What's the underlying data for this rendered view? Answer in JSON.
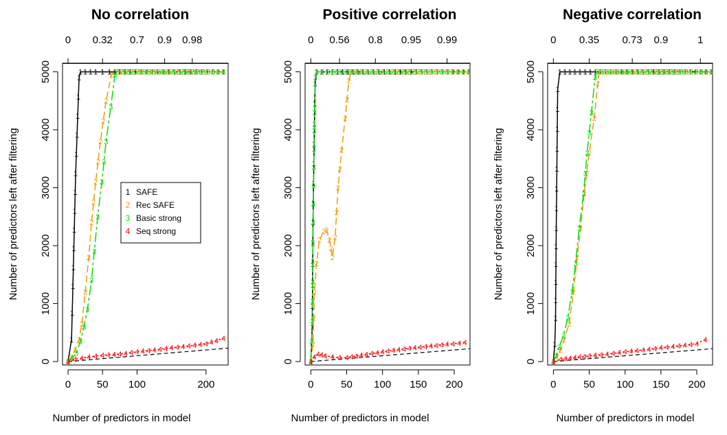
{
  "colors": {
    "SAFE": "#000000",
    "Rec SAFE": "#ee9a00",
    "Basic strong": "#00dd00",
    "Seq strong": "#ff0000",
    "diagonal": "#000000"
  },
  "legend": {
    "placement": "left-panel, middle",
    "entries": [
      {
        "symbol": "1",
        "label": "SAFE"
      },
      {
        "symbol": "2",
        "label": "Rec SAFE"
      },
      {
        "symbol": "3",
        "label": "Basic strong"
      },
      {
        "symbol": "4",
        "label": "Seq strong"
      }
    ]
  },
  "chart_data": [
    {
      "type": "line",
      "title": "No correlation",
      "xlabel": "Number of predictors in model",
      "ylabel": "Number of predictors left after filtering",
      "xlim": [
        -8,
        232
      ],
      "ylim": [
        -60,
        5150
      ],
      "x_ticks": [
        0,
        50,
        100,
        200
      ],
      "y_ticks": [
        0,
        1000,
        2000,
        3000,
        4000,
        5000
      ],
      "top_axis_ticks": [
        {
          "at": 0,
          "label": "0"
        },
        {
          "at": 50,
          "label": "0.32"
        },
        {
          "at": 100,
          "label": "0.7"
        },
        {
          "at": 140,
          "label": "0.9"
        },
        {
          "at": 180,
          "label": "0.98"
        }
      ],
      "reference_line": {
        "style": "dashed",
        "points": [
          [
            0,
            0
          ],
          [
            232,
            232
          ]
        ]
      },
      "series": [
        {
          "name": "SAFE",
          "symbol": "1",
          "points": [
            [
              0,
              0
            ],
            [
              5,
              380
            ],
            [
              7,
              1300
            ],
            [
              11,
              3250
            ],
            [
              16,
              4900
            ],
            [
              18,
              5000
            ],
            [
              25,
              5000
            ],
            [
              40,
              5000
            ],
            [
              60,
              5000
            ],
            [
              90,
              5000
            ],
            [
              130,
              5000
            ],
            [
              170,
              5000
            ],
            [
              225,
              5000
            ]
          ]
        },
        {
          "name": "Rec SAFE",
          "symbol": "2",
          "points": [
            [
              0,
              0
            ],
            [
              5,
              80
            ],
            [
              10,
              200
            ],
            [
              16,
              380
            ],
            [
              20,
              650
            ],
            [
              25,
              1200
            ],
            [
              30,
              1800
            ],
            [
              34,
              2400
            ],
            [
              40,
              3100
            ],
            [
              47,
              3800
            ],
            [
              55,
              4500
            ],
            [
              63,
              4950
            ],
            [
              70,
              5000
            ],
            [
              100,
              5000
            ],
            [
              150,
              5000
            ],
            [
              225,
              5000
            ]
          ]
        },
        {
          "name": "Basic strong",
          "symbol": "3",
          "points": [
            [
              0,
              0
            ],
            [
              6,
              60
            ],
            [
              12,
              150
            ],
            [
              18,
              350
            ],
            [
              23,
              600
            ],
            [
              28,
              900
            ],
            [
              34,
              1400
            ],
            [
              38,
              1900
            ],
            [
              43,
              2500
            ],
            [
              49,
              3100
            ],
            [
              55,
              3800
            ],
            [
              62,
              4400
            ],
            [
              68,
              4950
            ],
            [
              72,
              5000
            ],
            [
              110,
              5000
            ],
            [
              160,
              5000
            ],
            [
              225,
              5000
            ]
          ]
        },
        {
          "name": "Seq strong",
          "symbol": "4",
          "points": [
            [
              0,
              0
            ],
            [
              10,
              40
            ],
            [
              30,
              80
            ],
            [
              50,
              110
            ],
            [
              75,
              130
            ],
            [
              100,
              170
            ],
            [
              125,
              200
            ],
            [
              150,
              240
            ],
            [
              175,
              270
            ],
            [
              200,
              310
            ],
            [
              215,
              360
            ],
            [
              225,
              400
            ]
          ]
        }
      ]
    },
    {
      "type": "line",
      "title": "Positive correlation",
      "xlabel": "Number of predictors in model",
      "ylabel": "Number of predictors left after filtering",
      "xlim": [
        -8,
        222
      ],
      "ylim": [
        -60,
        5150
      ],
      "x_ticks": [
        0,
        50,
        100,
        150,
        200
      ],
      "y_ticks": [
        0,
        1000,
        2000,
        3000,
        4000,
        5000
      ],
      "top_axis_ticks": [
        {
          "at": 0,
          "label": "0"
        },
        {
          "at": 40,
          "label": "0.56"
        },
        {
          "at": 90,
          "label": "0.8"
        },
        {
          "at": 140,
          "label": "0.95"
        },
        {
          "at": 190,
          "label": "0.99"
        }
      ],
      "reference_line": {
        "style": "dashed",
        "points": [
          [
            0,
            0
          ],
          [
            222,
            222
          ]
        ]
      },
      "series": [
        {
          "name": "SAFE",
          "symbol": "1",
          "points": [
            [
              0,
              0
            ],
            [
              2,
              600
            ],
            [
              3,
              2400
            ],
            [
              5,
              4100
            ],
            [
              6,
              4800
            ],
            [
              8,
              5000
            ],
            [
              30,
              5000
            ],
            [
              80,
              5000
            ],
            [
              140,
              5000
            ],
            [
              220,
              5000
            ]
          ]
        },
        {
          "name": "Rec SAFE",
          "symbol": "2",
          "points": [
            [
              0,
              0
            ],
            [
              3,
              300
            ],
            [
              5,
              1200
            ],
            [
              8,
              1700
            ],
            [
              12,
              2100
            ],
            [
              18,
              2250
            ],
            [
              22,
              2270
            ],
            [
              26,
              2100
            ],
            [
              28,
              1950
            ],
            [
              30,
              1800
            ],
            [
              34,
              2150
            ],
            [
              38,
              3000
            ],
            [
              43,
              3650
            ],
            [
              48,
              4200
            ],
            [
              53,
              4850
            ],
            [
              56,
              5000
            ],
            [
              100,
              5000
            ],
            [
              220,
              5000
            ]
          ]
        },
        {
          "name": "Basic strong",
          "symbol": "3",
          "points": [
            [
              0,
              0
            ],
            [
              2,
              700
            ],
            [
              3,
              2400
            ],
            [
              5,
              4300
            ],
            [
              6,
              4900
            ],
            [
              8,
              5000
            ],
            [
              40,
              5000
            ],
            [
              100,
              5000
            ],
            [
              160,
              5000
            ],
            [
              220,
              5000
            ]
          ]
        },
        {
          "name": "Seq strong",
          "symbol": "4",
          "points": [
            [
              0,
              0
            ],
            [
              5,
              80
            ],
            [
              10,
              130
            ],
            [
              15,
              120
            ],
            [
              20,
              100
            ],
            [
              30,
              80
            ],
            [
              40,
              70
            ],
            [
              50,
              70
            ],
            [
              70,
              110
            ],
            [
              100,
              170
            ],
            [
              130,
              220
            ],
            [
              160,
              260
            ],
            [
              190,
              300
            ],
            [
              215,
              330
            ]
          ]
        }
      ]
    },
    {
      "type": "line",
      "title": "Negative correlation",
      "xlabel": "Number of predictors in model",
      "ylabel": "Number of predictors left after filtering",
      "xlim": [
        -8,
        222
      ],
      "ylim": [
        -60,
        5150
      ],
      "x_ticks": [
        0,
        50,
        100,
        150,
        200
      ],
      "y_ticks": [
        0,
        1000,
        2000,
        3000,
        4000,
        5000
      ],
      "top_axis_ticks": [
        {
          "at": 0,
          "label": "0"
        },
        {
          "at": 50,
          "label": "0.35"
        },
        {
          "at": 110,
          "label": "0.73"
        },
        {
          "at": 150,
          "label": "0.9"
        },
        {
          "at": 205,
          "label": "1"
        }
      ],
      "reference_line": {
        "style": "dashed",
        "points": [
          [
            0,
            0
          ],
          [
            222,
            222
          ]
        ]
      },
      "series": [
        {
          "name": "SAFE",
          "symbol": "1",
          "points": [
            [
              0,
              0
            ],
            [
              2,
              300
            ],
            [
              3,
              750
            ],
            [
              4,
              2300
            ],
            [
              6,
              4700
            ],
            [
              9,
              5000
            ],
            [
              30,
              5000
            ],
            [
              80,
              5000
            ],
            [
              140,
              5000
            ],
            [
              220,
              5000
            ]
          ]
        },
        {
          "name": "Rec SAFE",
          "symbol": "2",
          "points": [
            [
              0,
              0
            ],
            [
              5,
              100
            ],
            [
              10,
              200
            ],
            [
              15,
              380
            ],
            [
              22,
              650
            ],
            [
              28,
              1200
            ],
            [
              33,
              1800
            ],
            [
              38,
              2300
            ],
            [
              43,
              2900
            ],
            [
              50,
              3600
            ],
            [
              57,
              4200
            ],
            [
              62,
              4800
            ],
            [
              64,
              5000
            ],
            [
              100,
              5000
            ],
            [
              220,
              5000
            ]
          ]
        },
        {
          "name": "Basic strong",
          "symbol": "3",
          "points": [
            [
              0,
              0
            ],
            [
              4,
              100
            ],
            [
              8,
              250
            ],
            [
              14,
              450
            ],
            [
              20,
              750
            ],
            [
              26,
              1200
            ],
            [
              31,
              1700
            ],
            [
              36,
              2300
            ],
            [
              42,
              2900
            ],
            [
              47,
              3600
            ],
            [
              53,
              4300
            ],
            [
              58,
              4900
            ],
            [
              60,
              5000
            ],
            [
              110,
              5000
            ],
            [
              220,
              5000
            ]
          ]
        },
        {
          "name": "Seq strong",
          "symbol": "4",
          "points": [
            [
              0,
              0
            ],
            [
              10,
              40
            ],
            [
              30,
              70
            ],
            [
              50,
              100
            ],
            [
              75,
              130
            ],
            [
              100,
              170
            ],
            [
              125,
              200
            ],
            [
              150,
              240
            ],
            [
              175,
              270
            ],
            [
              200,
              310
            ],
            [
              212,
              380
            ]
          ]
        }
      ]
    }
  ]
}
